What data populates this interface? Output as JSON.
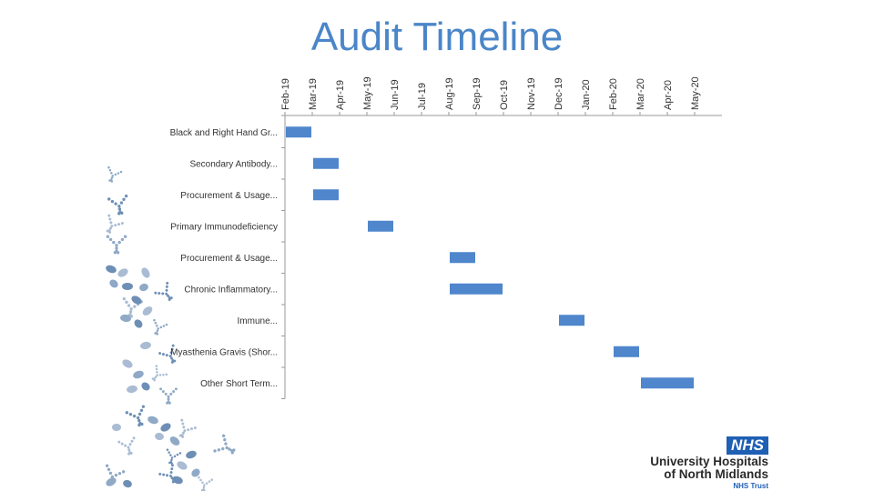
{
  "slide": {
    "title": "Audit Timeline"
  },
  "logo": {
    "badge": "NHS",
    "org_line1": "University Hospitals",
    "org_line2": "of North Midlands",
    "trust": "NHS Trust",
    "badge_color": "#1F5FB4"
  },
  "chart_data": {
    "type": "bar",
    "subtype": "gantt",
    "title": "",
    "xlabel": "",
    "ylabel": "",
    "grid": false,
    "legend": "none",
    "bar_color": "#4F86CC",
    "x_axis": {
      "position": "top",
      "tick_labels_rotated": true
    },
    "months": [
      "Feb-19",
      "Mar-19",
      "Apr-19",
      "May-19",
      "Jun-19",
      "Jul-19",
      "Aug-19",
      "Sep-19",
      "Oct-19",
      "Nov-19",
      "Dec-19",
      "Jan-20",
      "Feb-20",
      "Mar-20",
      "Apr-20",
      "May-20"
    ],
    "tasks": [
      {
        "label": "Black and Right Hand Gr...",
        "start": "2019-02-01",
        "end": "2019-03-01"
      },
      {
        "label": "Secondary Antibody...",
        "start": "2019-03-01",
        "end": "2019-04-01"
      },
      {
        "label": "Procurement & Usage...",
        "start": "2019-03-01",
        "end": "2019-04-01"
      },
      {
        "label": "Primary Immunodeficiency",
        "start": "2019-05-01",
        "end": "2019-06-01"
      },
      {
        "label": "Procurement & Usage...",
        "start": "2019-08-01",
        "end": "2019-09-01"
      },
      {
        "label": "Chronic Inflammatory...",
        "start": "2019-08-01",
        "end": "2019-10-01"
      },
      {
        "label": "Immune...",
        "start": "2019-12-01",
        "end": "2020-01-01"
      },
      {
        "label": "Myasthenia Gravis (Shor...",
        "start": "2020-02-01",
        "end": "2020-03-01"
      },
      {
        "label": "Other Short Term...",
        "start": "2020-03-01",
        "end": "2020-05-01"
      }
    ]
  }
}
